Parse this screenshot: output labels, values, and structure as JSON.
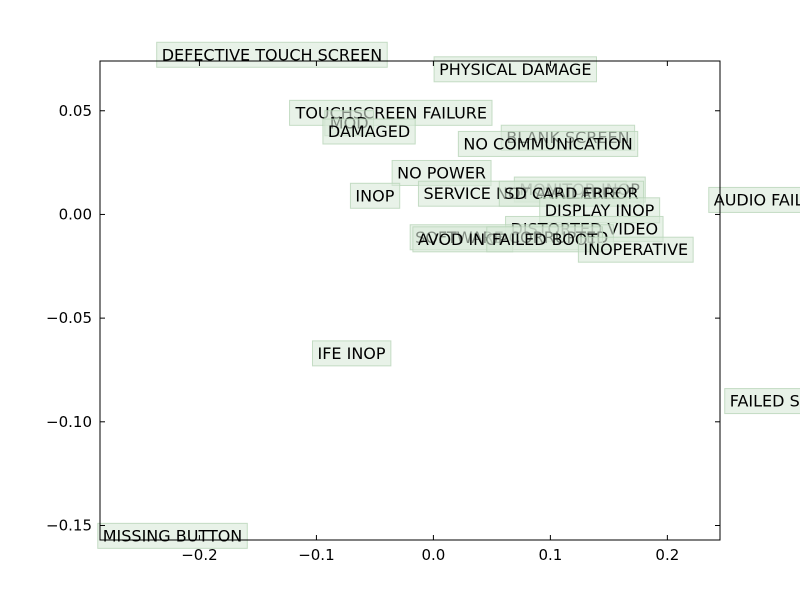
{
  "chart_data": {
    "type": "scatter",
    "title": "",
    "xlabel": "",
    "ylabel": "",
    "xlim": [
      -0.285,
      0.245
    ],
    "ylim": [
      -0.157,
      0.074
    ],
    "xticks": [
      {
        "value": -0.2,
        "label": "−0.2"
      },
      {
        "value": -0.1,
        "label": "−0.1"
      },
      {
        "value": 0.0,
        "label": "0.0"
      },
      {
        "value": 0.1,
        "label": "0.1"
      },
      {
        "value": 0.2,
        "label": "0.2"
      }
    ],
    "yticks": [
      {
        "value": 0.05,
        "label": "0.05"
      },
      {
        "value": 0.0,
        "label": "0.00"
      },
      {
        "value": -0.05,
        "label": "−0.05"
      },
      {
        "value": -0.1,
        "label": "−0.10"
      },
      {
        "value": -0.15,
        "label": "−0.15"
      }
    ],
    "grid": false,
    "label_box_color": "#d8ead8",
    "label_box_border": "#b8d4b8",
    "points": [
      {
        "label": "DEFECTIVE TOUCH SCREEN",
        "x": -0.138,
        "y": 0.077
      },
      {
        "label": "PHYSICAL DAMAGE",
        "x": 0.07,
        "y": 0.07
      },
      {
        "label": "TOUCHSCREEN FAILURE",
        "x": -0.036,
        "y": 0.049
      },
      {
        "label": "MOD",
        "x": -0.072,
        "y": 0.044
      },
      {
        "label": "DAMAGED",
        "x": -0.055,
        "y": 0.04
      },
      {
        "label": "BLANK SCREEN",
        "x": 0.115,
        "y": 0.037
      },
      {
        "label": "NO COMMUNICATION",
        "x": 0.098,
        "y": 0.034
      },
      {
        "label": "NO POWER",
        "x": 0.007,
        "y": 0.02
      },
      {
        "label": "MONITOR INOP",
        "x": 0.125,
        "y": 0.012
      },
      {
        "label": "SERVICE NOT AVAILABLE",
        "x": 0.076,
        "y": 0.01
      },
      {
        "label": "SD CARD ERROR",
        "x": 0.118,
        "y": 0.01
      },
      {
        "label": "INOP",
        "x": -0.05,
        "y": 0.009
      },
      {
        "label": "AUDIO FAIL",
        "x": 0.278,
        "y": 0.007
      },
      {
        "label": "DISPLAY INOP",
        "x": 0.142,
        "y": 0.002
      },
      {
        "label": "DISTORTED VIDEO",
        "x": 0.129,
        "y": -0.007
      },
      {
        "label": "SOFTWARE CORRUPTED",
        "x": 0.067,
        "y": -0.011
      },
      {
        "label": "AVOD INOP",
        "x": 0.025,
        "y": -0.012
      },
      {
        "label": "FAILED BOOT",
        "x": 0.095,
        "y": -0.012
      },
      {
        "label": "INOPERATIVE",
        "x": 0.173,
        "y": -0.017
      },
      {
        "label": "IFE INOP",
        "x": -0.07,
        "y": -0.067
      },
      {
        "label": "FAILED SW",
        "x": 0.29,
        "y": -0.09
      },
      {
        "label": "MISSING BUTTON",
        "x": -0.223,
        "y": -0.155
      }
    ]
  }
}
